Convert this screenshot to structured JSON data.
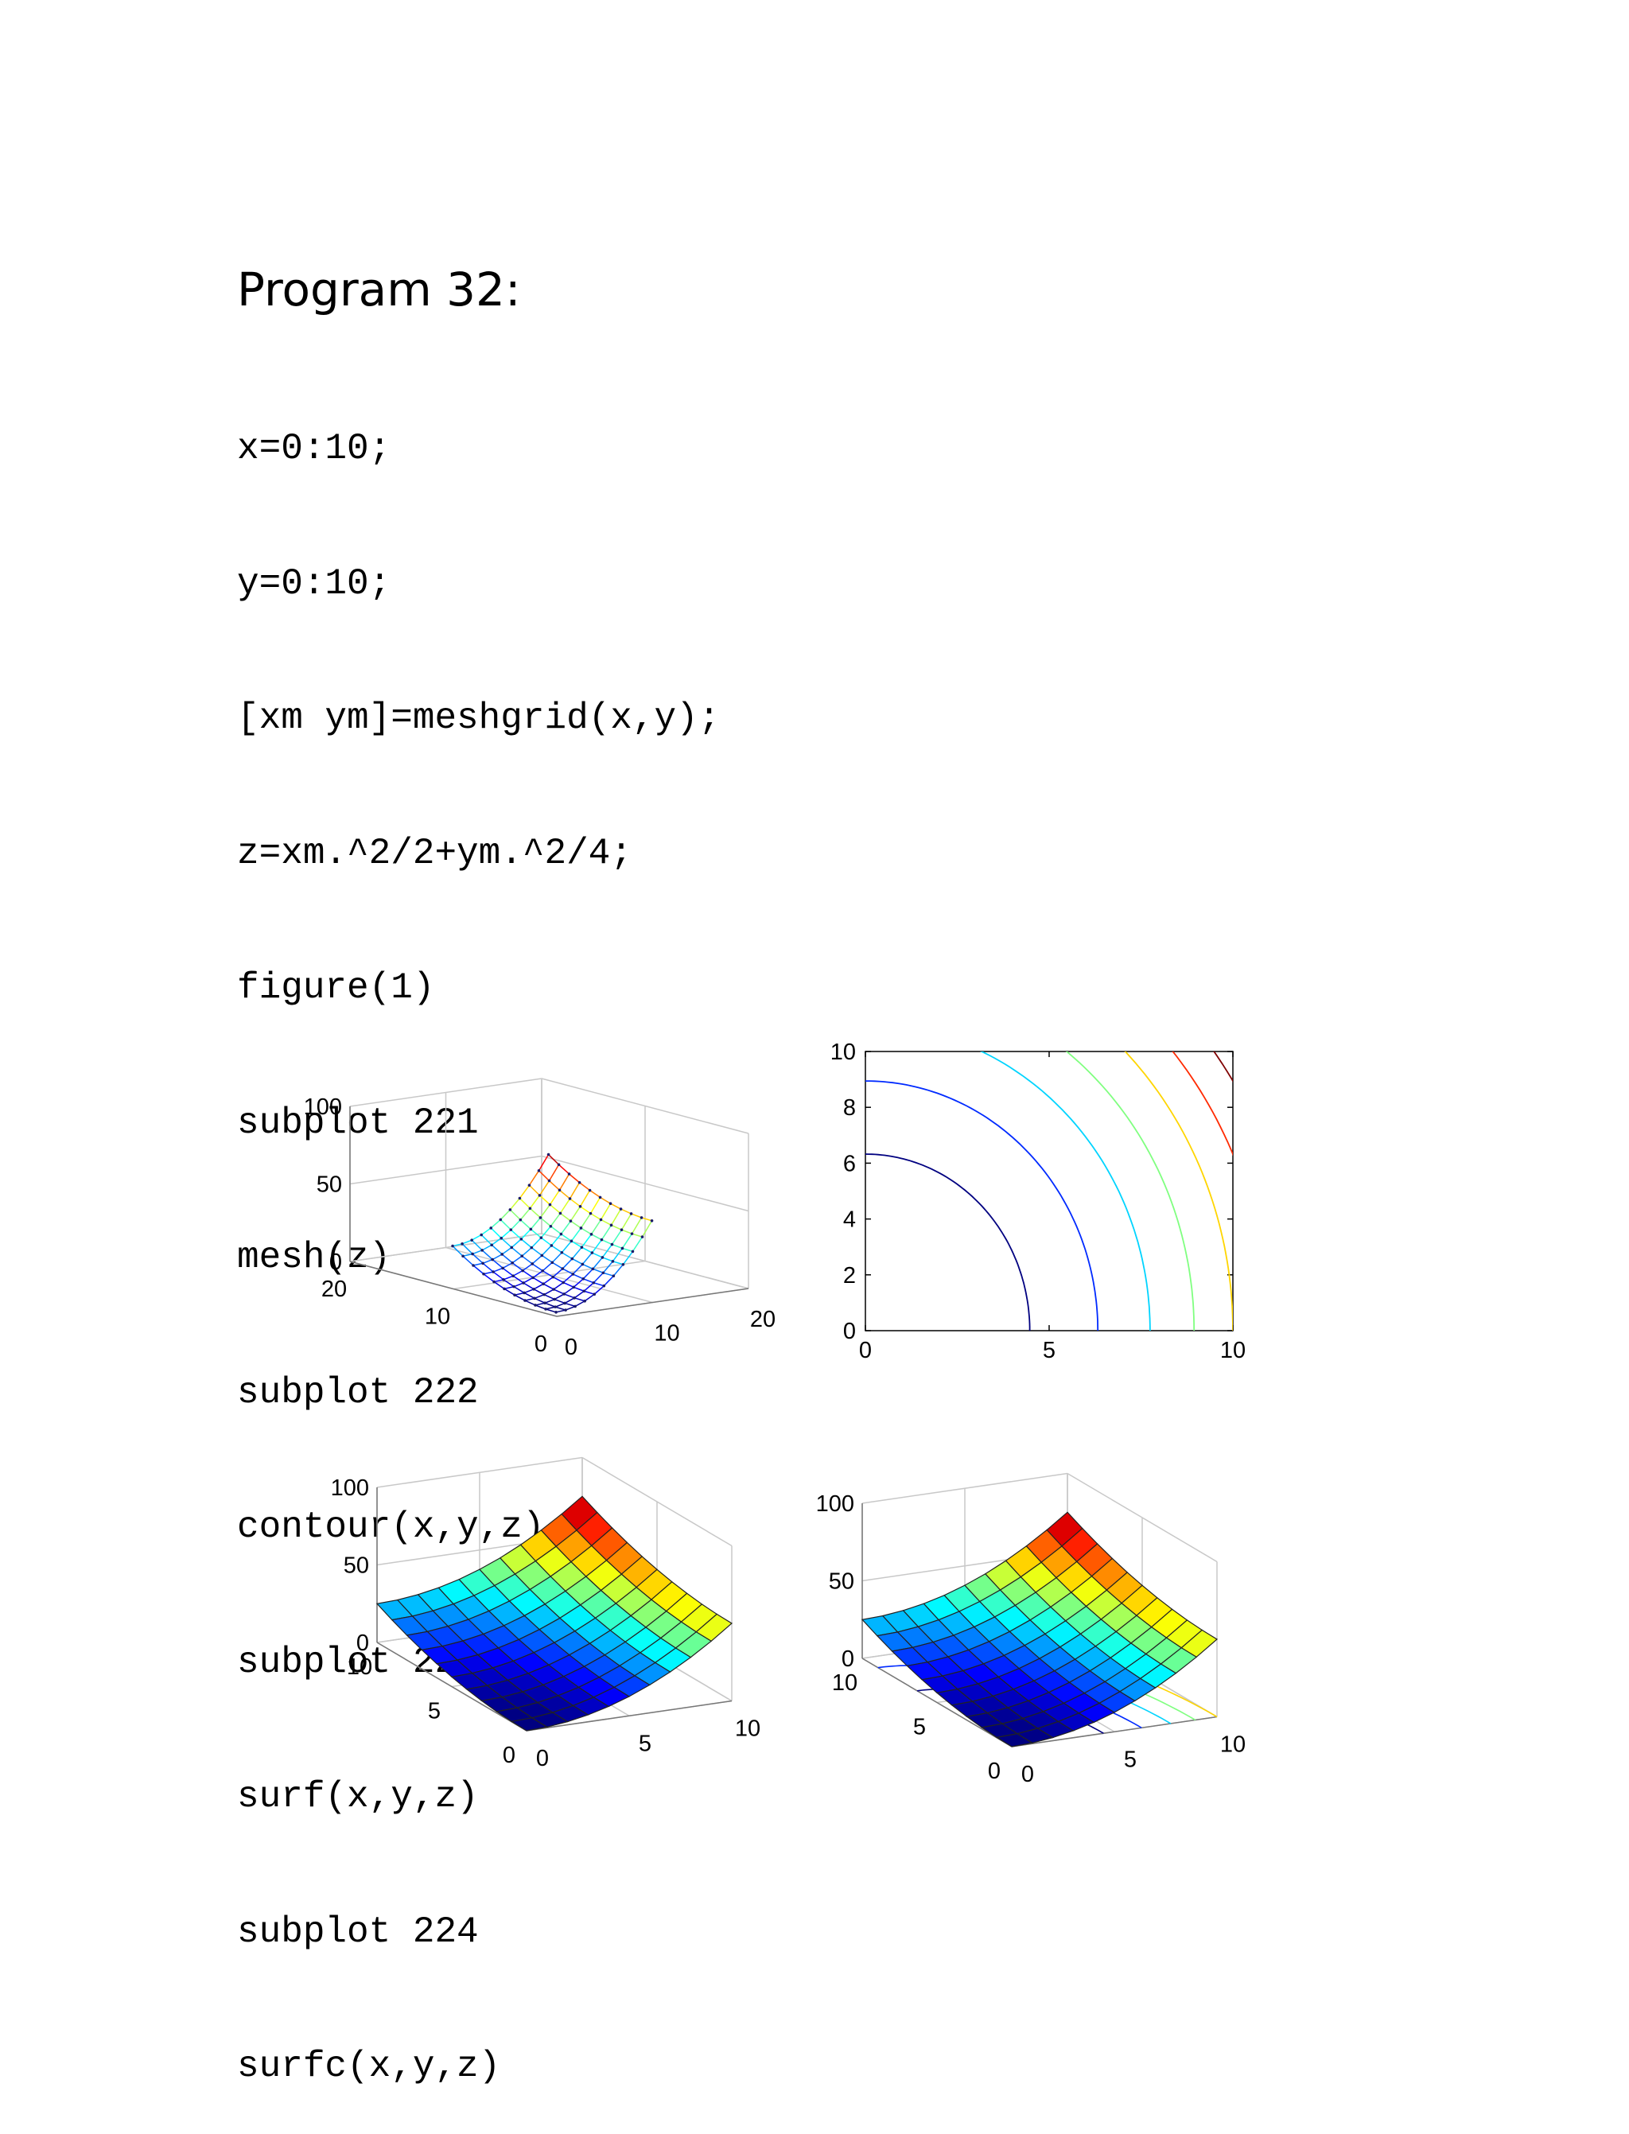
{
  "document": {
    "title": "Program 32:",
    "code_lines": [
      "x=0:10;",
      "y=0:10;",
      "[xm ym]=meshgrid(x,y);",
      "z=xm.^2/2+ym.^2/4;",
      "figure(1)",
      "subplot 221",
      "mesh(z)",
      "subplot 222",
      "contour(x,y,z)",
      "subplot 223",
      "surf(x,y,z)",
      "subplot 224",
      "surfc(x,y,z)"
    ]
  },
  "chart_data": [
    {
      "subplot": "221",
      "type": "mesh3d",
      "function": "z = x^2/2 + y^2/4",
      "grid": "11x11",
      "xlim": [
        0,
        20
      ],
      "ylim": [
        0,
        20
      ],
      "zlim": [
        0,
        100
      ],
      "xticks": [
        "0",
        "10",
        "20"
      ],
      "yticks": [
        "0",
        "10",
        "20"
      ],
      "zticks": [
        "0",
        "50",
        "100"
      ],
      "colormap": "jet"
    },
    {
      "subplot": "222",
      "type": "contour",
      "function": "z = x^2/2 + y^2/4",
      "xlim": [
        0,
        10
      ],
      "ylim": [
        0,
        10
      ],
      "xticks": [
        "0",
        "5",
        "10"
      ],
      "yticks": [
        "0",
        "2",
        "4",
        "6",
        "8",
        "10"
      ],
      "levels": [
        10,
        20,
        30,
        40,
        50,
        60,
        70
      ],
      "colormap": "jet"
    },
    {
      "subplot": "223",
      "type": "surf",
      "function": "z = x^2/2 + y^2/4",
      "xlim": [
        0,
        10
      ],
      "ylim": [
        0,
        10
      ],
      "zlim": [
        0,
        100
      ],
      "xticks": [
        "0",
        "5",
        "10"
      ],
      "yticks": [
        "0",
        "5",
        "10"
      ],
      "zticks": [
        "0",
        "50",
        "100"
      ],
      "colormap": "jet"
    },
    {
      "subplot": "224",
      "type": "surfc",
      "function": "z = x^2/2 + y^2/4",
      "xlim": [
        0,
        10
      ],
      "ylim": [
        0,
        10
      ],
      "zlim": [
        0,
        100
      ],
      "xticks": [
        "0",
        "5",
        "10"
      ],
      "yticks": [
        "0",
        "5",
        "10"
      ],
      "zticks": [
        "0",
        "50",
        "100"
      ],
      "colormap": "jet"
    }
  ]
}
